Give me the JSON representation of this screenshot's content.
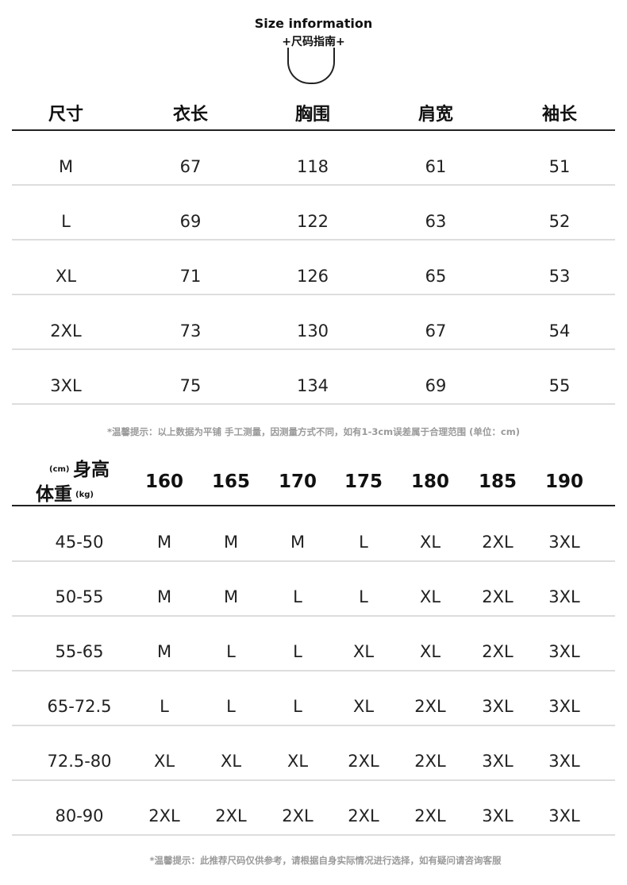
{
  "header": {
    "title": "Size information",
    "subtitle": "+尺码指南+"
  },
  "size_table": {
    "columns": [
      "尺寸",
      "衣长",
      "胸围",
      "肩宽",
      "袖长"
    ],
    "rows": [
      [
        "M",
        "67",
        "118",
        "61",
        "51"
      ],
      [
        "L",
        "69",
        "122",
        "63",
        "52"
      ],
      [
        "XL",
        "71",
        "126",
        "65",
        "53"
      ],
      [
        "2XL",
        "73",
        "130",
        "67",
        "54"
      ],
      [
        "3XL",
        "75",
        "134",
        "69",
        "55"
      ]
    ]
  },
  "note1": "*温馨提示：以上数据为平铺 手工测量，因测量方式不同，如有1-3cm误差属于合理范围 (单位：cm)",
  "rec_table": {
    "height_label": "身高",
    "height_unit": "(cm)",
    "weight_label": "体重",
    "weight_unit": "(kg)",
    "heights": [
      "160",
      "165",
      "170",
      "175",
      "180",
      "185",
      "190"
    ],
    "rows": [
      {
        "weight": "45-50",
        "sizes": [
          "M",
          "M",
          "M",
          "L",
          "XL",
          "2XL",
          "3XL"
        ]
      },
      {
        "weight": "50-55",
        "sizes": [
          "M",
          "M",
          "L",
          "L",
          "XL",
          "2XL",
          "3XL"
        ]
      },
      {
        "weight": "55-65",
        "sizes": [
          "M",
          "L",
          "L",
          "XL",
          "XL",
          "2XL",
          "3XL"
        ]
      },
      {
        "weight": "65-72.5",
        "sizes": [
          "L",
          "L",
          "L",
          "XL",
          "2XL",
          "3XL",
          "3XL"
        ]
      },
      {
        "weight": "72.5-80",
        "sizes": [
          "XL",
          "XL",
          "XL",
          "2XL",
          "2XL",
          "3XL",
          "3XL"
        ]
      },
      {
        "weight": "80-90",
        "sizes": [
          "2XL",
          "2XL",
          "2XL",
          "2XL",
          "2XL",
          "3XL",
          "3XL"
        ]
      }
    ]
  },
  "note2": "*温馨提示：此推荐尺码仅供参考，请根据自身实际情况进行选择，如有疑问请咨询客服"
}
